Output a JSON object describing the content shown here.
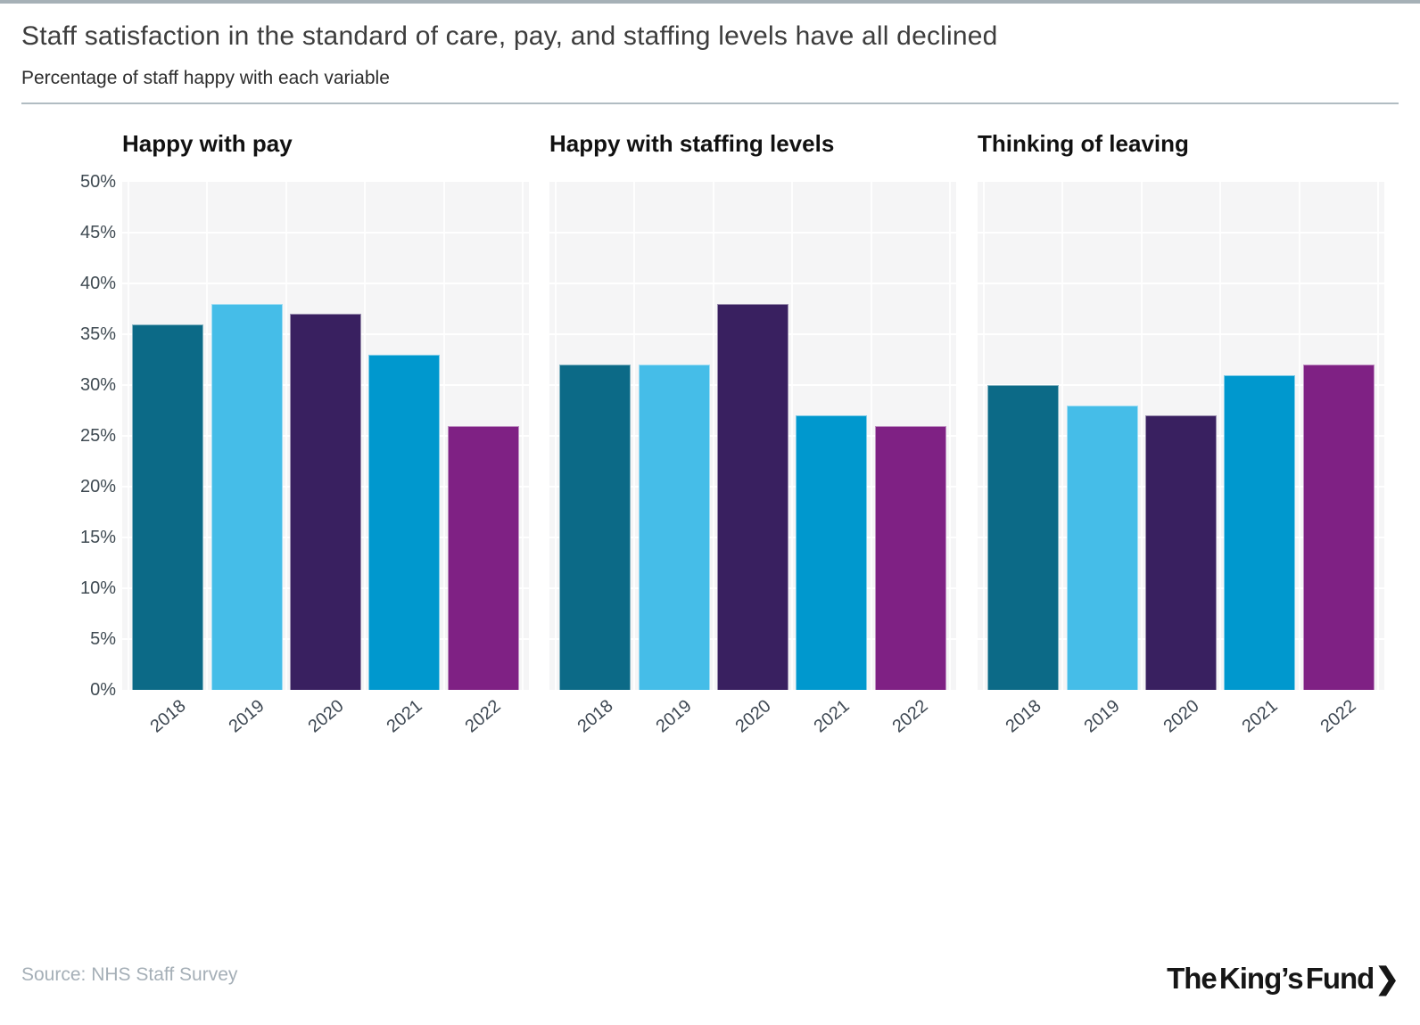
{
  "header": {
    "title": "Staff satisfaction in the standard of care, pay, and staffing levels have all declined",
    "subtitle": "Percentage of staff happy with each variable"
  },
  "series_colors": {
    "2018": "#0c6a87",
    "2019": "#45bde8",
    "2020": "#392060",
    "2021": "#0098ce",
    "2022": "#7f2184"
  },
  "chart_data": [
    {
      "type": "bar",
      "title": "Happy with pay",
      "categories": [
        "2018",
        "2019",
        "2020",
        "2021",
        "2022"
      ],
      "values": [
        36,
        38,
        37,
        33,
        26
      ],
      "unit": "%",
      "ylim": [
        0,
        50
      ],
      "ytick_step": 5,
      "ytick_labels": [
        "50%",
        "45%",
        "40%",
        "35%",
        "30%",
        "25%",
        "20%",
        "15%",
        "10%",
        "5%",
        "0%"
      ],
      "grid": true,
      "legend": "none"
    },
    {
      "type": "bar",
      "title": "Happy with staffing levels",
      "categories": [
        "2018",
        "2019",
        "2020",
        "2021",
        "2022"
      ],
      "values": [
        32,
        32,
        38,
        27,
        26
      ],
      "unit": "%",
      "ylim": [
        0,
        50
      ],
      "ytick_step": 5,
      "ytick_labels": [],
      "grid": true,
      "legend": "none"
    },
    {
      "type": "bar",
      "title": "Thinking of leaving",
      "categories": [
        "2018",
        "2019",
        "2020",
        "2021",
        "2022"
      ],
      "values": [
        30,
        28,
        27,
        31,
        32
      ],
      "unit": "%",
      "ylim": [
        0,
        50
      ],
      "ytick_step": 5,
      "ytick_labels": [],
      "grid": true,
      "legend": "none"
    }
  ],
  "footer": {
    "source": "Source: NHS Staff Survey",
    "logo_text": "The King’s Fund",
    "logo_chevron": "❯"
  }
}
